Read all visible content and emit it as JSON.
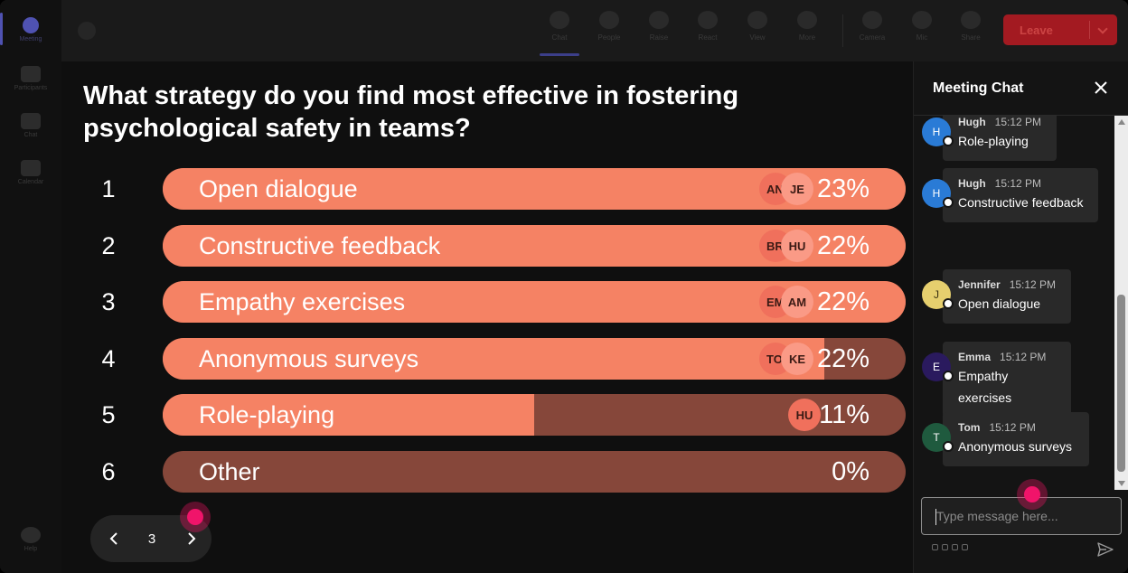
{
  "rail": {
    "items": [
      {
        "label": "Meeting",
        "icon": "meeting-icon",
        "active": true
      },
      {
        "label": "Participants",
        "icon": "people-icon",
        "active": false
      },
      {
        "label": "Chat",
        "icon": "chat-icon",
        "active": false
      },
      {
        "label": "Calendar",
        "icon": "calendar-icon",
        "active": false
      }
    ],
    "help_label": "Help"
  },
  "toolbar": {
    "items": [
      {
        "label": "Chat",
        "icon": "chat-icon",
        "active": true
      },
      {
        "label": "People",
        "icon": "people-icon"
      },
      {
        "label": "Raise",
        "icon": "raise-hand-icon"
      },
      {
        "label": "React",
        "icon": "react-icon"
      },
      {
        "label": "View",
        "icon": "view-icon"
      },
      {
        "label": "More",
        "icon": "more-icon"
      },
      {
        "label": "Camera",
        "icon": "camera-icon"
      },
      {
        "label": "Mic",
        "icon": "mic-icon"
      },
      {
        "label": "Share",
        "icon": "share-icon"
      }
    ],
    "leave_label": "Leave"
  },
  "poll": {
    "question": "What strategy do you find most effective in fostering psychological safety in teams?",
    "options": [
      {
        "num": "1",
        "label": "Open dialogue",
        "percent": "23%",
        "fill": 1.0,
        "avatars": [
          "AN",
          "JE"
        ]
      },
      {
        "num": "2",
        "label": "Constructive feedback",
        "percent": "22%",
        "fill": 1.0,
        "avatars": [
          "BR",
          "HU"
        ]
      },
      {
        "num": "3",
        "label": "Empathy exercises",
        "percent": "22%",
        "fill": 1.0,
        "avatars": [
          "EM",
          "AM"
        ]
      },
      {
        "num": "4",
        "label": "Anonymous surveys",
        "percent": "22%",
        "fill": 0.89,
        "avatars": [
          "TO",
          "KE"
        ]
      },
      {
        "num": "5",
        "label": "Role-playing",
        "percent": "11%",
        "fill": 0.5,
        "avatars": [
          "HU"
        ]
      },
      {
        "num": "6",
        "label": "Other",
        "percent": "0%",
        "fill": 0,
        "avatars": []
      }
    ],
    "pager": {
      "page": "3"
    }
  },
  "chat": {
    "title": "Meeting Chat",
    "messages": [
      {
        "initial": "H",
        "name": "Hugh",
        "time": "15:12 PM",
        "text": "Role-playing",
        "color": "#2a7bd6"
      },
      {
        "initial": "H",
        "name": "Hugh",
        "time": "15:12 PM",
        "text": "Constructive feedback",
        "color": "#2a7bd6"
      },
      {
        "initial": "J",
        "name": "Jennifer",
        "time": "15:12 PM",
        "text": "Open dialogue",
        "color": "#e6cf6e"
      },
      {
        "initial": "E",
        "name": "Emma",
        "time": "15:12 PM",
        "text": "Empathy exercises",
        "color": "#2a1a5e"
      },
      {
        "initial": "T",
        "name": "Tom",
        "time": "15:12 PM",
        "text": "Anonymous surveys",
        "color": "#1f5a3e"
      }
    ],
    "input_placeholder": "Type message here..."
  },
  "colors": {
    "bar_fill": "#f58264",
    "bar_track": "#86473a",
    "accent": "#4f52b2",
    "leave": "#a31a21",
    "cursor": "#f0146a"
  }
}
